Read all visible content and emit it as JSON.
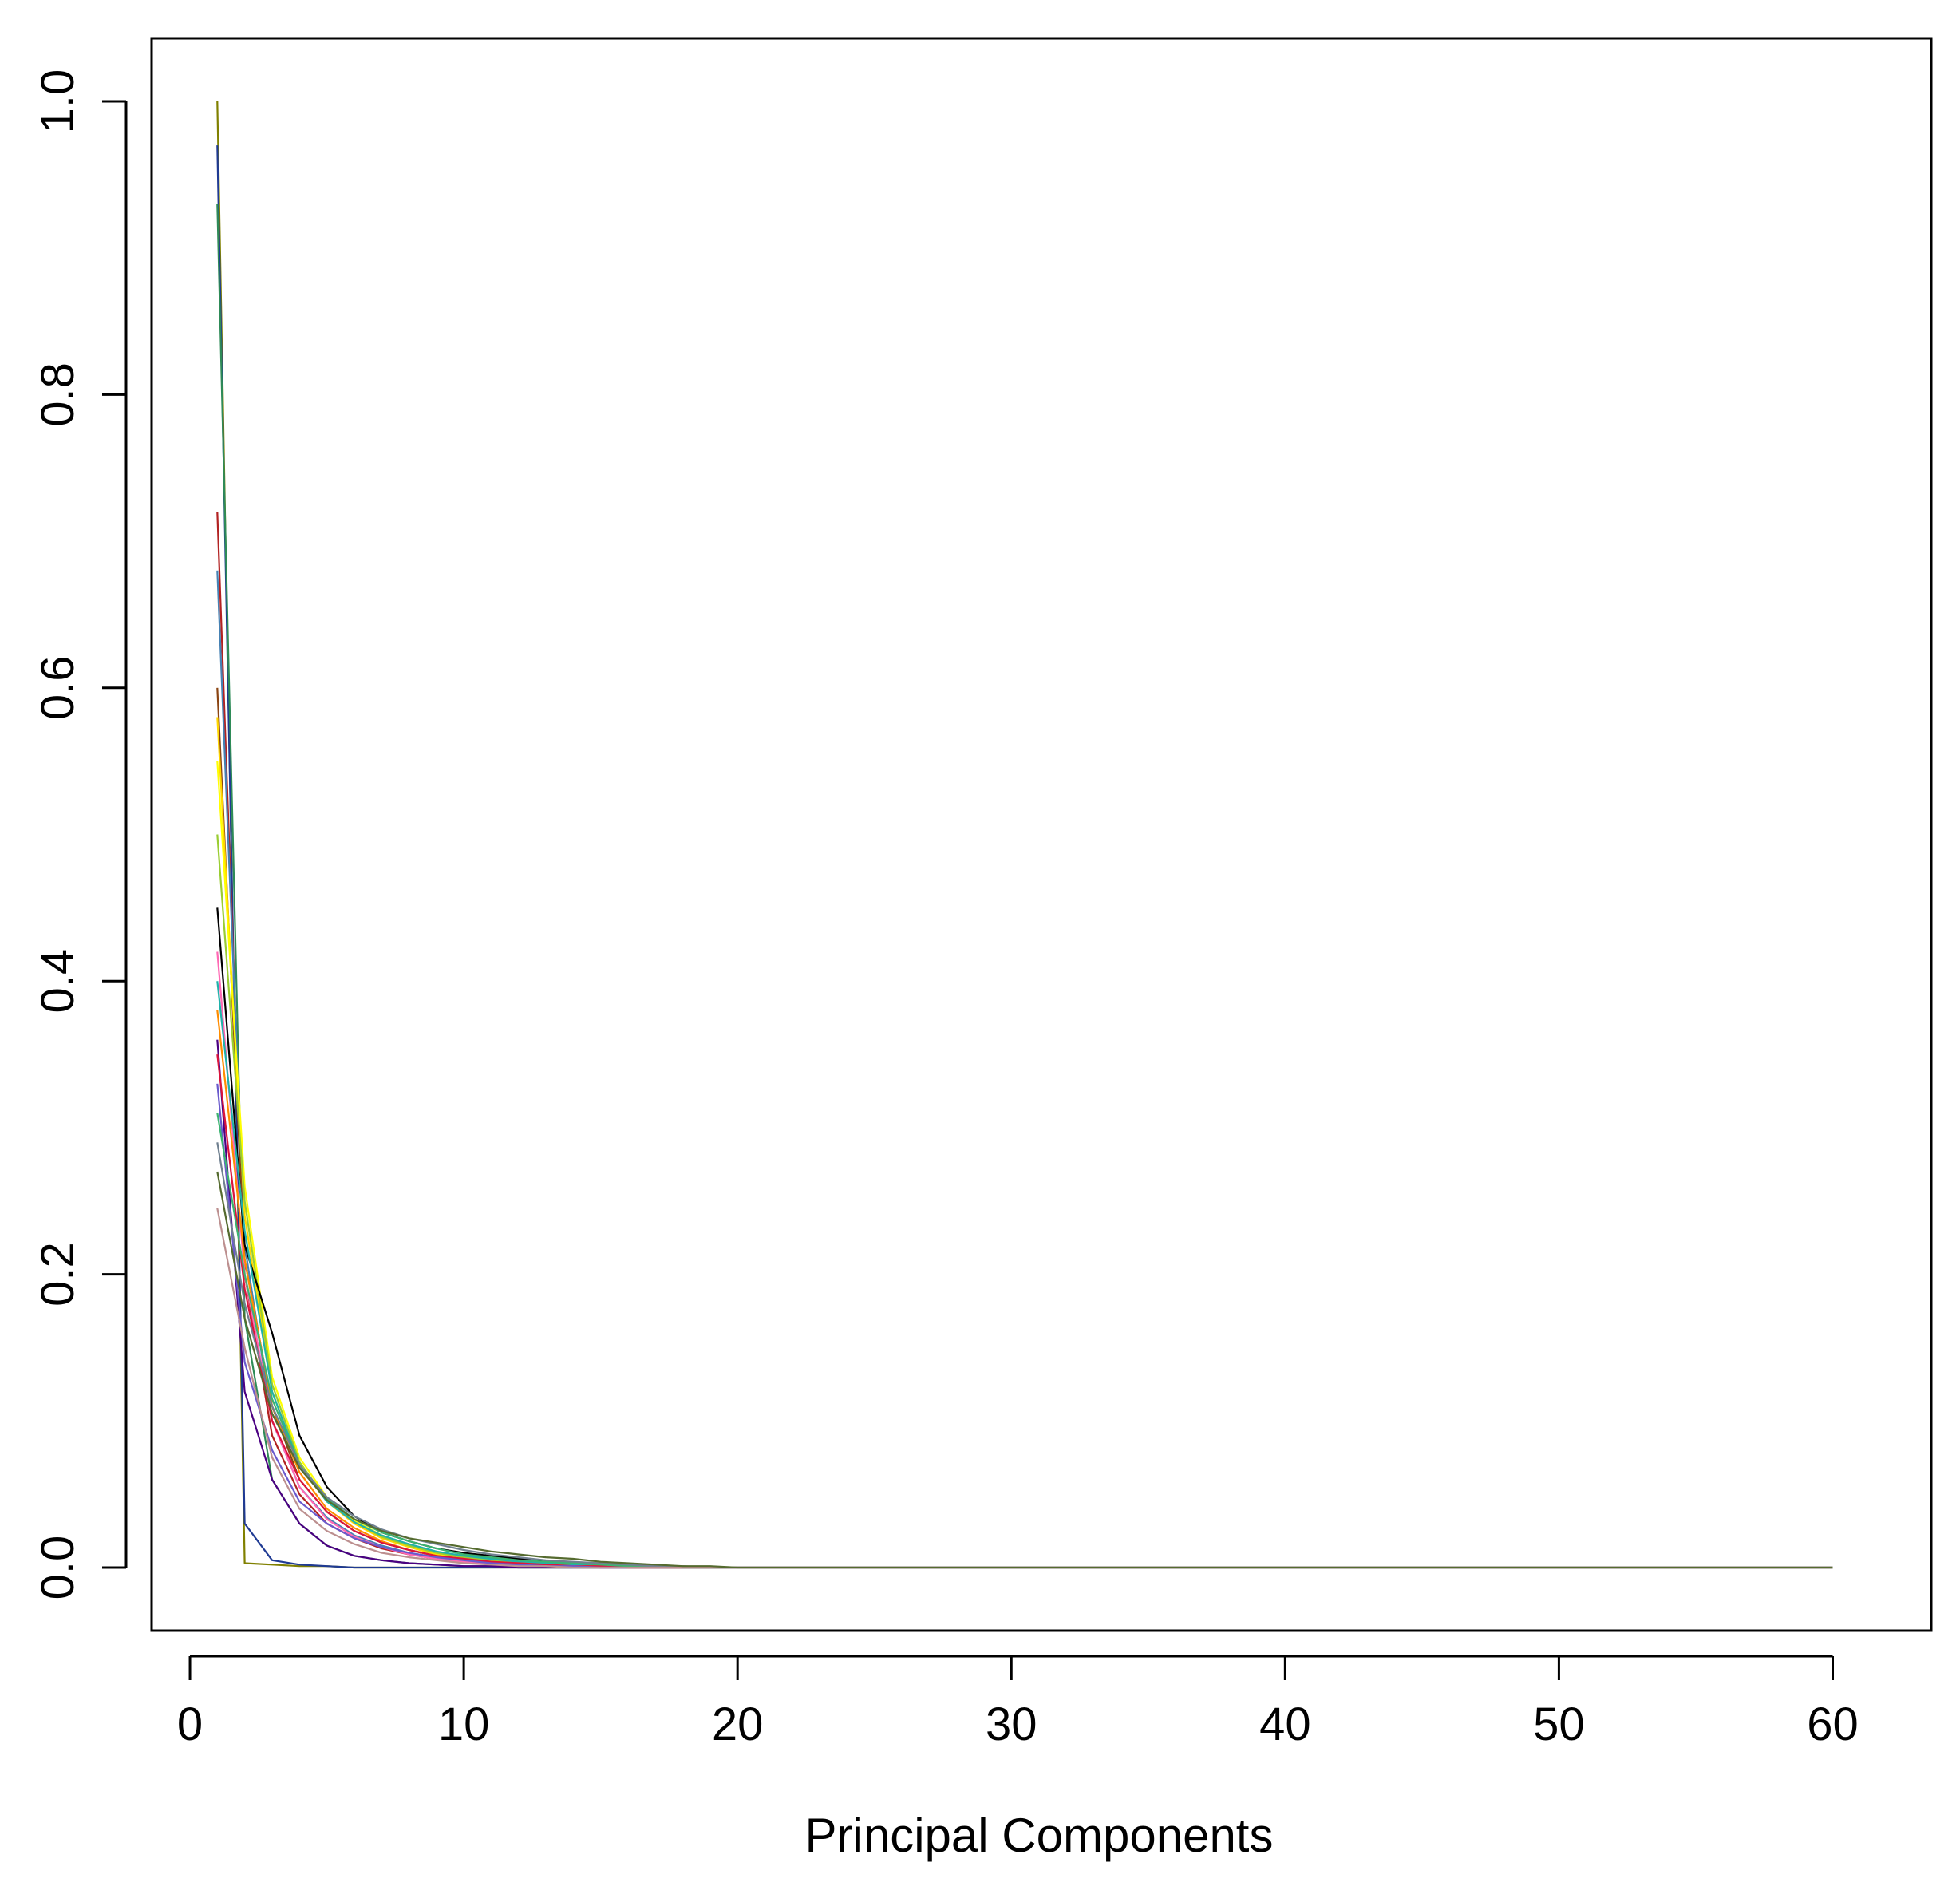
{
  "chart_data": {
    "type": "line",
    "title": "",
    "xlabel": "Principal Components",
    "ylabel": "",
    "xlim": [
      -1.4,
      63.6
    ],
    "ylim": [
      -0.043,
      1.043
    ],
    "xticks": [
      0,
      10,
      20,
      30,
      40,
      50,
      60
    ],
    "xtick_labels": [
      "0",
      "10",
      "20",
      "30",
      "40",
      "50",
      "60"
    ],
    "yticks": [
      0.0,
      0.2,
      0.4,
      0.6,
      0.8,
      1.0
    ],
    "ytick_labels": [
      "0.0",
      "0.2",
      "0.4",
      "0.6",
      "0.8",
      "1.0"
    ],
    "grid": false,
    "legend": "none",
    "x": [
      1,
      2,
      3,
      4,
      5,
      6,
      7,
      8,
      9,
      10,
      11,
      12,
      13,
      14,
      15,
      16,
      17,
      18,
      19,
      20,
      21,
      25,
      30,
      40,
      50,
      60
    ],
    "series": [
      {
        "color": "#808000",
        "values": [
          1.0,
          0.003,
          0.002,
          0.001,
          0.001,
          0.0,
          0.0,
          0.0,
          0.0,
          0.0,
          0.0,
          0.0,
          0.0,
          0.0,
          0.0,
          0.0,
          0.0,
          0.0,
          0.0,
          0.0,
          0.0,
          0.0,
          0.0,
          0.0,
          0.0,
          0.0
        ]
      },
      {
        "color": "#1f3a93",
        "values": [
          0.97,
          0.03,
          0.005,
          0.002,
          0.001,
          0.0,
          0.0,
          0.0,
          0.0,
          0.0,
          0.0,
          0.0,
          0.0,
          0.0,
          0.0,
          0.0,
          0.0,
          0.0,
          0.0,
          0.0,
          0.0,
          0.0,
          0.0,
          0.0,
          0.0,
          0.0
        ]
      },
      {
        "color": "#2e8b57",
        "values": [
          0.93,
          0.17,
          0.06,
          0.03,
          0.015,
          0.008,
          0.005,
          0.003,
          0.002,
          0.001,
          0.001,
          0.0,
          0.0,
          0.0,
          0.0,
          0.0,
          0.0,
          0.0,
          0.0,
          0.0,
          0.0,
          0.0,
          0.0,
          0.0,
          0.0,
          0.0
        ]
      },
      {
        "color": "#b22222",
        "values": [
          0.72,
          0.2,
          0.09,
          0.05,
          0.03,
          0.02,
          0.013,
          0.009,
          0.006,
          0.004,
          0.003,
          0.002,
          0.001,
          0.001,
          0.0,
          0.0,
          0.0,
          0.0,
          0.0,
          0.0,
          0.0,
          0.0,
          0.0,
          0.0,
          0.0,
          0.0
        ]
      },
      {
        "color": "#4682b4",
        "values": [
          0.68,
          0.22,
          0.1,
          0.055,
          0.034,
          0.022,
          0.015,
          0.01,
          0.007,
          0.005,
          0.003,
          0.002,
          0.001,
          0.001,
          0.0,
          0.0,
          0.0,
          0.0,
          0.0,
          0.0,
          0.0,
          0.0,
          0.0,
          0.0,
          0.0,
          0.0
        ]
      },
      {
        "color": "#8b4513",
        "values": [
          0.6,
          0.21,
          0.11,
          0.06,
          0.038,
          0.025,
          0.017,
          0.012,
          0.008,
          0.005,
          0.004,
          0.003,
          0.002,
          0.001,
          0.001,
          0.0,
          0.0,
          0.0,
          0.0,
          0.0,
          0.0,
          0.0,
          0.0,
          0.0,
          0.0,
          0.0
        ]
      },
      {
        "color": "#ffd700",
        "values": [
          0.58,
          0.24,
          0.12,
          0.07,
          0.045,
          0.03,
          0.02,
          0.014,
          0.009,
          0.006,
          0.004,
          0.003,
          0.002,
          0.001,
          0.001,
          0.0,
          0.0,
          0.0,
          0.0,
          0.0,
          0.0,
          0.0,
          0.0,
          0.0,
          0.0,
          0.0
        ]
      },
      {
        "color": "#ffff00",
        "values": [
          0.55,
          0.26,
          0.13,
          0.075,
          0.048,
          0.032,
          0.022,
          0.015,
          0.01,
          0.007,
          0.005,
          0.003,
          0.002,
          0.001,
          0.001,
          0.0,
          0.0,
          0.0,
          0.0,
          0.0,
          0.0,
          0.0,
          0.0,
          0.0,
          0.0,
          0.0
        ]
      },
      {
        "color": "#9acd32",
        "values": [
          0.5,
          0.25,
          0.125,
          0.072,
          0.046,
          0.031,
          0.021,
          0.015,
          0.01,
          0.007,
          0.005,
          0.003,
          0.002,
          0.001,
          0.001,
          0.0,
          0.0,
          0.0,
          0.0,
          0.0,
          0.0,
          0.0,
          0.0,
          0.0,
          0.0,
          0.0
        ]
      },
      {
        "color": "#000000",
        "values": [
          0.45,
          0.22,
          0.16,
          0.09,
          0.055,
          0.035,
          0.024,
          0.018,
          0.013,
          0.01,
          0.008,
          0.006,
          0.004,
          0.003,
          0.002,
          0.001,
          0.001,
          0.0,
          0.0,
          0.0,
          0.0,
          0.0,
          0.0,
          0.0,
          0.0,
          0.0
        ]
      },
      {
        "color": "#ff69b4",
        "values": [
          0.42,
          0.2,
          0.1,
          0.055,
          0.033,
          0.021,
          0.014,
          0.009,
          0.006,
          0.004,
          0.003,
          0.002,
          0.001,
          0.001,
          0.0,
          0.0,
          0.0,
          0.0,
          0.0,
          0.0,
          0.0,
          0.0,
          0.0,
          0.0,
          0.0,
          0.0
        ]
      },
      {
        "color": "#20b2aa",
        "values": [
          0.4,
          0.23,
          0.12,
          0.07,
          0.045,
          0.031,
          0.022,
          0.016,
          0.011,
          0.008,
          0.006,
          0.004,
          0.003,
          0.002,
          0.001,
          0.001,
          0.0,
          0.0,
          0.0,
          0.0,
          0.0,
          0.0,
          0.0,
          0.0,
          0.0,
          0.0
        ]
      },
      {
        "color": "#ff8c00",
        "values": [
          0.38,
          0.21,
          0.11,
          0.065,
          0.04,
          0.027,
          0.018,
          0.012,
          0.008,
          0.006,
          0.004,
          0.003,
          0.002,
          0.001,
          0.001,
          0.0,
          0.0,
          0.0,
          0.0,
          0.0,
          0.0,
          0.0,
          0.0,
          0.0,
          0.0,
          0.0
        ]
      },
      {
        "color": "#4b0082",
        "values": [
          0.36,
          0.12,
          0.06,
          0.03,
          0.015,
          0.008,
          0.005,
          0.003,
          0.002,
          0.001,
          0.001,
          0.0,
          0.0,
          0.0,
          0.0,
          0.0,
          0.0,
          0.0,
          0.0,
          0.0,
          0.0,
          0.0,
          0.0,
          0.0,
          0.0,
          0.0
        ]
      },
      {
        "color": "#dc143c",
        "values": [
          0.35,
          0.19,
          0.1,
          0.06,
          0.038,
          0.025,
          0.017,
          0.012,
          0.008,
          0.006,
          0.004,
          0.003,
          0.002,
          0.001,
          0.001,
          0.0,
          0.0,
          0.0,
          0.0,
          0.0,
          0.0,
          0.0,
          0.0,
          0.0,
          0.0,
          0.0
        ]
      },
      {
        "color": "#6a5acd",
        "values": [
          0.33,
          0.14,
          0.08,
          0.045,
          0.03,
          0.02,
          0.014,
          0.01,
          0.007,
          0.005,
          0.003,
          0.002,
          0.001,
          0.001,
          0.0,
          0.0,
          0.0,
          0.0,
          0.0,
          0.0,
          0.0,
          0.0,
          0.0,
          0.0,
          0.0,
          0.0
        ]
      },
      {
        "color": "#3cb371",
        "values": [
          0.31,
          0.2,
          0.115,
          0.07,
          0.047,
          0.033,
          0.024,
          0.018,
          0.013,
          0.009,
          0.007,
          0.005,
          0.004,
          0.003,
          0.002,
          0.001,
          0.001,
          0.0,
          0.0,
          0.0,
          0.0,
          0.0,
          0.0,
          0.0,
          0.0,
          0.0
        ]
      },
      {
        "color": "#708090",
        "values": [
          0.29,
          0.18,
          0.11,
          0.07,
          0.048,
          0.035,
          0.026,
          0.02,
          0.016,
          0.012,
          0.009,
          0.007,
          0.005,
          0.004,
          0.003,
          0.002,
          0.001,
          0.001,
          0.0,
          0.0,
          0.0,
          0.0,
          0.0,
          0.0,
          0.0,
          0.0
        ]
      },
      {
        "color": "#bc8f8f",
        "values": [
          0.245,
          0.15,
          0.075,
          0.04,
          0.025,
          0.016,
          0.01,
          0.007,
          0.005,
          0.003,
          0.002,
          0.001,
          0.001,
          0.0,
          0.0,
          0.0,
          0.0,
          0.0,
          0.0,
          0.0,
          0.0,
          0.0,
          0.0,
          0.0,
          0.0,
          0.0
        ]
      },
      {
        "color": "#556b2f",
        "values": [
          0.27,
          0.17,
          0.105,
          0.068,
          0.046,
          0.033,
          0.025,
          0.02,
          0.017,
          0.014,
          0.011,
          0.009,
          0.007,
          0.006,
          0.004,
          0.003,
          0.002,
          0.001,
          0.001,
          0.0,
          0.0,
          0.0,
          0.0,
          0.0,
          0.0,
          0.0
        ]
      }
    ]
  }
}
